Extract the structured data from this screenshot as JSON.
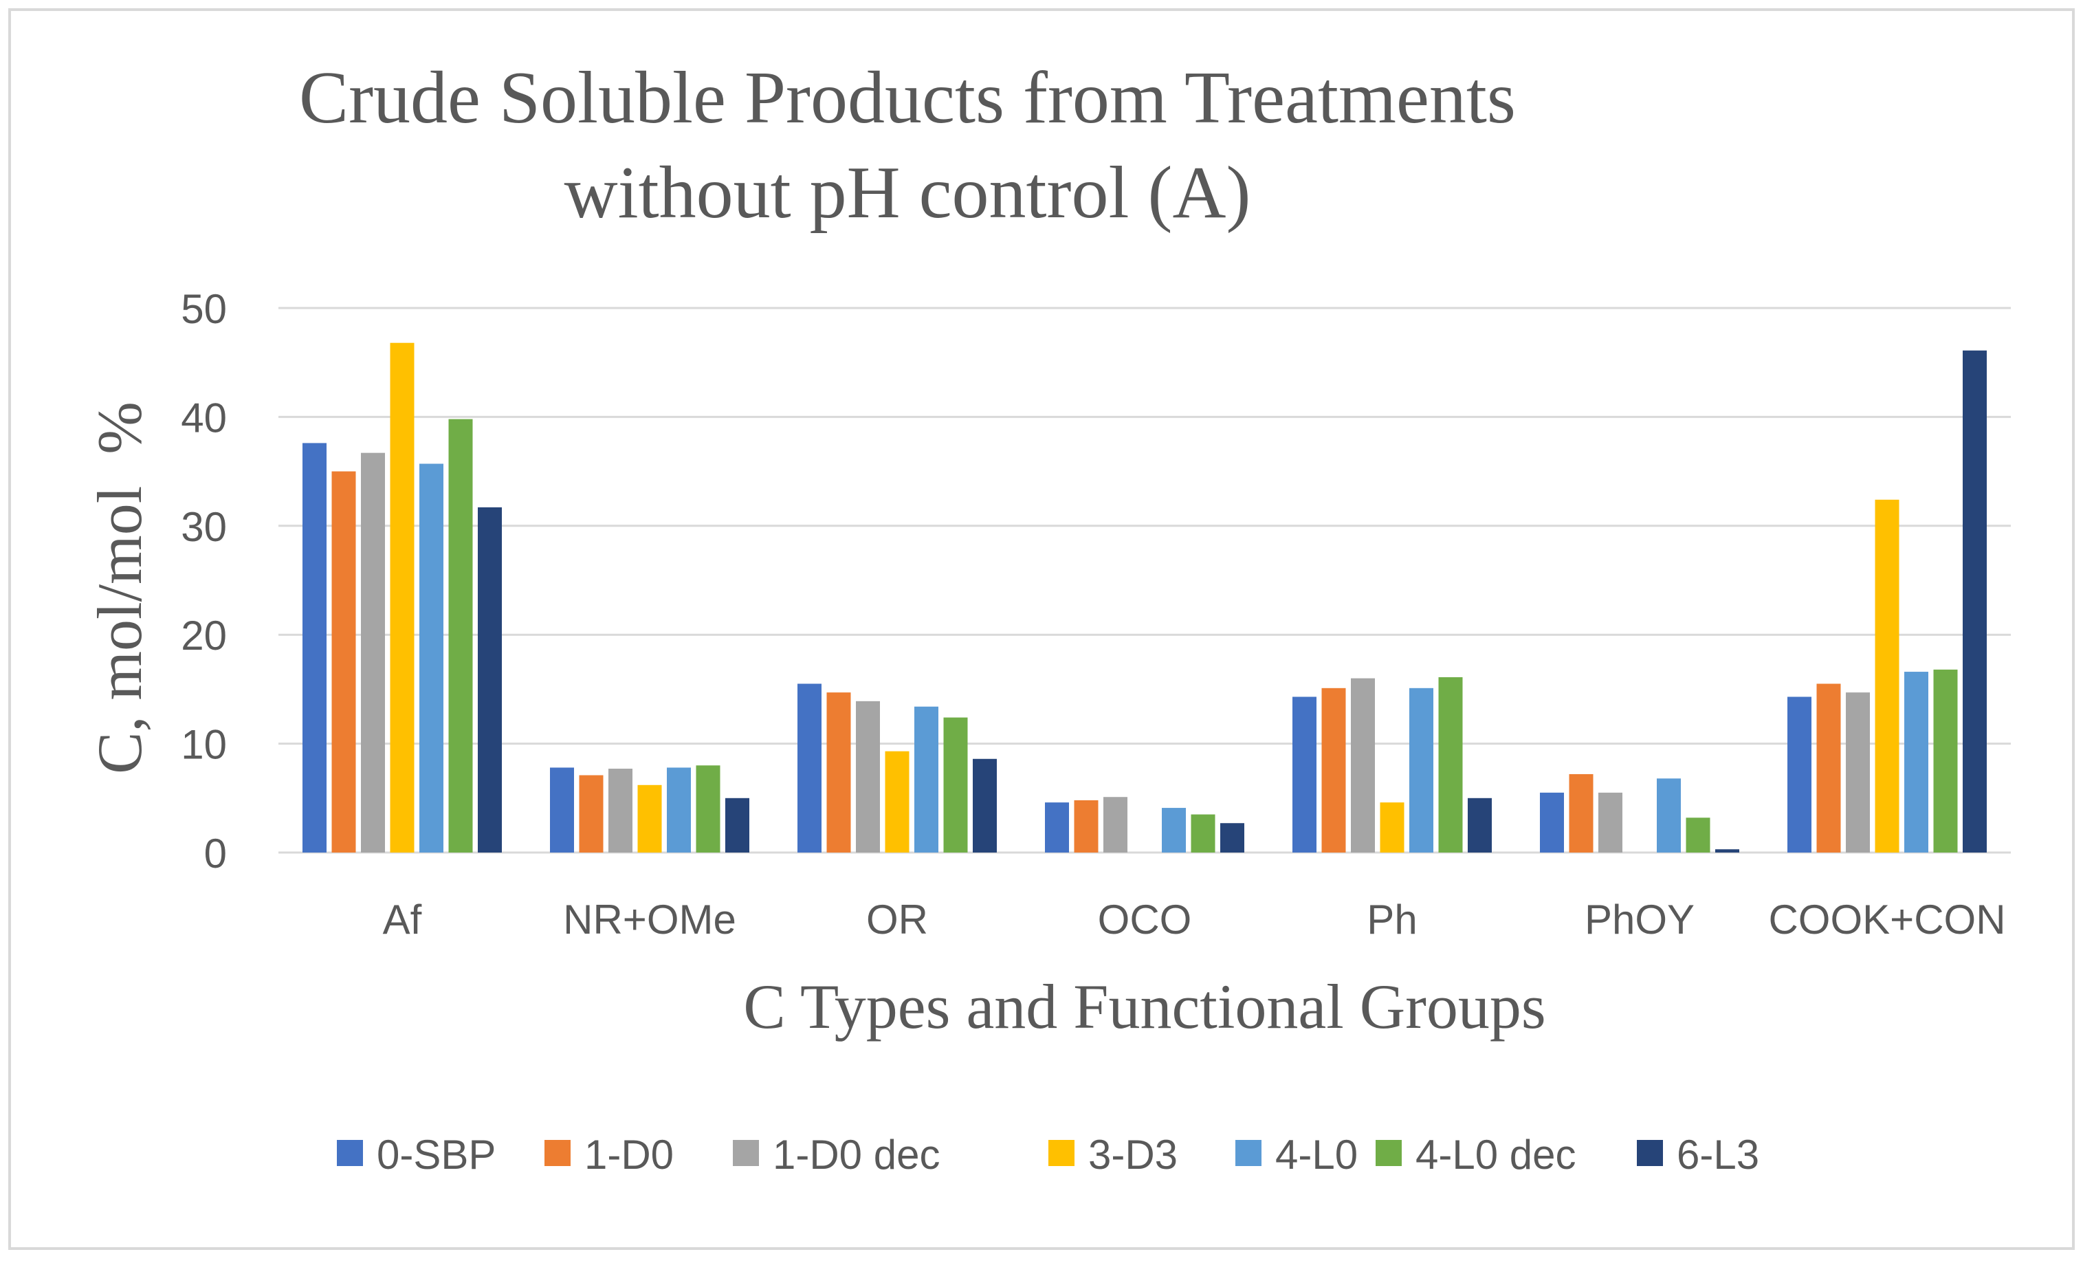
{
  "chart_data": {
    "type": "bar",
    "title": "Crude Soluble Products from Treatments",
    "subtitle": "without pH control (A)",
    "xlabel": "C Types and Functional Groups",
    "ylabel": "C, mol/mol  %",
    "ylim": [
      0,
      50
    ],
    "yticks": [
      "0",
      "10",
      "20",
      "30",
      "40",
      "50"
    ],
    "ytick_values": [
      0,
      10,
      20,
      30,
      40,
      50
    ],
    "grid": true,
    "legend_position": "bottom",
    "categories": [
      "Af",
      "NR+OMe",
      "OR",
      "OCO",
      "Ph",
      "PhOY",
      "COOK+CON"
    ],
    "series": [
      {
        "name": "0-SBP",
        "color": "#4472C4",
        "values": [
          37.6,
          7.8,
          15.5,
          4.6,
          14.3,
          5.5,
          14.3
        ]
      },
      {
        "name": "1-D0",
        "color": "#ED7D31",
        "values": [
          35.0,
          7.1,
          14.7,
          4.8,
          15.1,
          7.2,
          15.5
        ]
      },
      {
        "name": "1-D0 dec",
        "color": "#A5A5A5",
        "values": [
          36.7,
          7.7,
          13.9,
          5.1,
          16.0,
          5.5,
          14.7
        ]
      },
      {
        "name": "3-D3",
        "color": "#FFC000",
        "values": [
          46.8,
          6.2,
          9.3,
          0,
          4.6,
          0,
          32.4
        ]
      },
      {
        "name": "4-L0",
        "color": "#5B9BD5",
        "values": [
          35.7,
          7.8,
          13.4,
          4.1,
          15.1,
          6.8,
          16.6
        ]
      },
      {
        "name": "4-L0 dec",
        "color": "#70AD47",
        "values": [
          39.8,
          8.0,
          12.4,
          3.5,
          16.1,
          3.2,
          16.8
        ]
      },
      {
        "name": "6-L3",
        "color": "#264478",
        "values": [
          31.7,
          5.0,
          8.6,
          2.7,
          5.0,
          0.3,
          46.1
        ]
      }
    ]
  }
}
